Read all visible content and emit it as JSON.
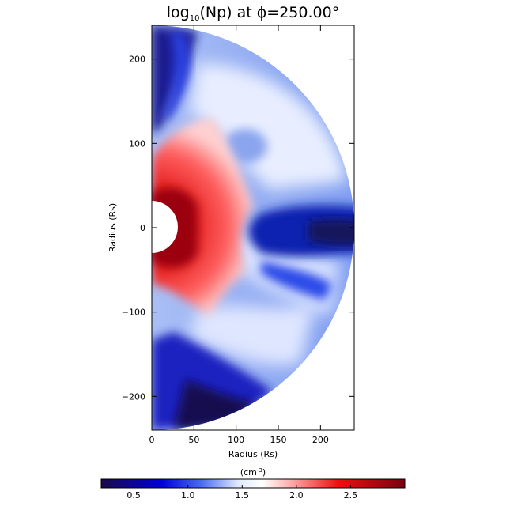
{
  "chart_data": {
    "type": "heatmap",
    "title_main": "log",
    "title_sub": "10",
    "title_rest": "(Np) at ϕ=250.00°",
    "xlabel": "Radius (Rs)",
    "ylabel": "Radius (Rs)",
    "xlim": [
      0,
      240
    ],
    "ylim": [
      -240,
      240
    ],
    "xticks": [
      0,
      50,
      100,
      150,
      200
    ],
    "yticks": [
      -200,
      -100,
      0,
      100,
      200
    ],
    "inner_radius": 30,
    "outer_radius": 240,
    "colorbar": {
      "unit_main": "(cm",
      "unit_sup": "-3",
      "unit_close": ")",
      "range": [
        0.2,
        3.0
      ],
      "ticks": [
        0.5,
        1.0,
        1.5,
        2.0,
        2.5
      ],
      "colors": [
        "#1a0a4a",
        "#0000dd",
        "#4a6cf0",
        "#dfe8ff",
        "#ffffff",
        "#ffb0b0",
        "#ee1010",
        "#7a0010"
      ]
    }
  }
}
